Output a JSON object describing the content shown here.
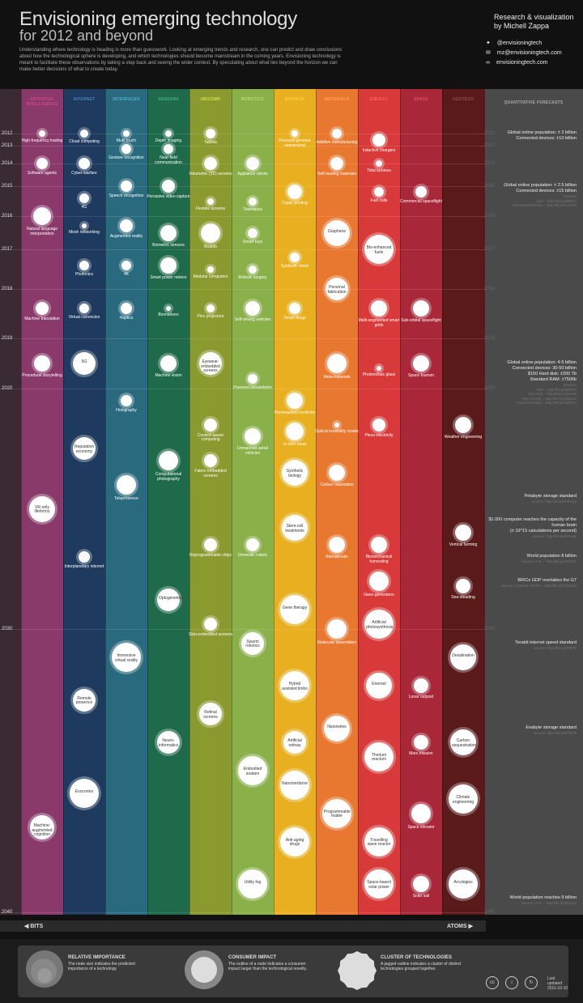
{
  "header": {
    "title_line1": "Envisioning emerging technology",
    "title_line2": "for 2012 and beyond",
    "intro": "Understanding where technology is heading is more than guesswork. Looking at emerging trends and research, one can predict and draw conclusions about how the technological sphere is developing, and which technologies should become mainstream in the coming years. Envisioning technology is meant to facilitate these observations by taking a step back and seeing the wider context. By speculating about what lies beyond the horizon we can make better decisions of what to create today.",
    "credit_line1": "Research & visualization",
    "credit_line2": "by Michell Zappa",
    "twitter": "@envisioningtech",
    "email": "mz@envisioningtech.com",
    "website": "envisioningtech.com"
  },
  "colors": {
    "ai": "#8a3a6a",
    "internet": "#1e3a5e",
    "interfaces": "#2a6a7e",
    "sensors": "#1e6a4a",
    "ubicomp": "#8a9a2e",
    "robotics": "#8ab04a",
    "biotech": "#e8b020",
    "materials": "#e87830",
    "energy": "#d83a3a",
    "space": "#a8283a",
    "geotech": "#5a1a1a",
    "forecast": "#4a4a4a"
  },
  "categories": [
    {
      "id": "ai",
      "name": "ARTIFICIAL INTELLIGENCE",
      "head_color": "#d04890"
    },
    {
      "id": "internet",
      "name": "INTERNET",
      "head_color": "#4a80c0"
    },
    {
      "id": "interfaces",
      "name": "INTERFACES",
      "head_color": "#50b0c8"
    },
    {
      "id": "sensors",
      "name": "SENSORS",
      "head_color": "#40b080"
    },
    {
      "id": "ubicomp",
      "name": "UBICOMP",
      "head_color": "#d0e050"
    },
    {
      "id": "robotics",
      "name": "ROBOTICS",
      "head_color": "#b0e070"
    },
    {
      "id": "biotech",
      "name": "BIOTECH",
      "head_color": "#ffd040"
    },
    {
      "id": "materials",
      "name": "MATERIALS",
      "head_color": "#ffa050"
    },
    {
      "id": "energy",
      "name": "ENERGY",
      "head_color": "#ff6060"
    },
    {
      "id": "space",
      "name": "SPACE",
      "head_color": "#e05060"
    },
    {
      "id": "geotech",
      "name": "GEOTECH",
      "head_color": "#905050"
    }
  ],
  "forecast_header": "QUANTITATIVE FORECASTS",
  "years": [
    "2012",
    "2013",
    "2014",
    "2015",
    "2016",
    "2017",
    "2018",
    "2019",
    "2020",
    "2030",
    "2040"
  ],
  "nodes": {
    "ai": [
      {
        "label": "High-frequency trading",
        "year": 2012.0,
        "size": 4
      },
      {
        "label": "Software agents",
        "year": 2014.0,
        "size": 7
      },
      {
        "label": "Natural language interpretation",
        "year": 2016.0,
        "size": 11
      },
      {
        "label": "Machine translation",
        "year": 2018.4,
        "size": 8
      },
      {
        "label": "Procedural storytelling",
        "year": 2019.5,
        "size": 10
      },
      {
        "label": "VR-only lifeforms",
        "year": 2025.0,
        "size": 16
      },
      {
        "label": "Machine-augmented cognition",
        "year": 2037.0,
        "size": 15
      }
    ],
    "internet": [
      {
        "label": "Cloud computing",
        "year": 2012.0,
        "size": 5
      },
      {
        "label": "Cyber-warfare",
        "year": 2014.0,
        "size": 7
      },
      {
        "label": "4G",
        "year": 2015.4,
        "size": 6
      },
      {
        "label": "Mesh networking",
        "year": 2016.3,
        "size": 3
      },
      {
        "label": "Photonics",
        "year": 2017.4,
        "size": 6
      },
      {
        "label": "Virtual currencies",
        "year": 2018.4,
        "size": 6
      },
      {
        "label": "5G",
        "year": 2019.5,
        "size": 14
      },
      {
        "label": "Reputation economy",
        "year": 2022.5,
        "size": 14
      },
      {
        "label": "Interplanetary internet",
        "year": 2027.0,
        "size": 7
      },
      {
        "label": "Remote presence",
        "year": 2032.5,
        "size": 14
      },
      {
        "label": "Exocortex",
        "year": 2035.8,
        "size": 18
      }
    ],
    "interfaces": [
      {
        "label": "Multi touch",
        "year": 2012.0,
        "size": 4
      },
      {
        "label": "Gesture recognition",
        "year": 2013.2,
        "size": 6
      },
      {
        "label": "Speech recognition",
        "year": 2015.0,
        "size": 7
      },
      {
        "label": "Augmented reality",
        "year": 2016.3,
        "size": 8
      },
      {
        "label": "4K",
        "year": 2017.4,
        "size": 6
      },
      {
        "label": "Haptics",
        "year": 2018.4,
        "size": 7
      },
      {
        "label": "Holography",
        "year": 2020.5,
        "size": 7
      },
      {
        "label": "Telepresence",
        "year": 2024.0,
        "size": 12
      },
      {
        "label": "Immersive virtual reality",
        "year": 2031.0,
        "size": 18
      }
    ],
    "sensors": [
      {
        "label": "Depth imaging",
        "year": 2012.0,
        "size": 4
      },
      {
        "label": "Near-field communication",
        "year": 2013.2,
        "size": 6
      },
      {
        "label": "Pervasive video capture",
        "year": 2015.0,
        "size": 8
      },
      {
        "label": "Biometric sensors",
        "year": 2016.5,
        "size": 10
      },
      {
        "label": "Smart power meters",
        "year": 2017.4,
        "size": 10
      },
      {
        "label": "Biomarkers",
        "year": 2018.4,
        "size": 3
      },
      {
        "label": "Machine vision",
        "year": 2019.5,
        "size": 10
      },
      {
        "label": "Computational photography",
        "year": 2023.0,
        "size": 12
      },
      {
        "label": "Optogenetics",
        "year": 2028.8,
        "size": 14
      },
      {
        "label": "Neuro-informatics",
        "year": 2034.0,
        "size": 14
      }
    ],
    "ubicomp": [
      {
        "label": "Tablets",
        "year": 2012.0,
        "size": 6
      },
      {
        "label": "Volumetric (3D) screens",
        "year": 2014.0,
        "size": 8
      },
      {
        "label": "Flexible screens",
        "year": 2015.5,
        "size": 4
      },
      {
        "label": "Boards",
        "year": 2016.5,
        "size": 12
      },
      {
        "label": "Modular computers",
        "year": 2017.5,
        "size": 4
      },
      {
        "label": "Pico projectors",
        "year": 2018.4,
        "size": 5
      },
      {
        "label": "Eyewear-embedded screens",
        "year": 2019.5,
        "size": 14
      },
      {
        "label": "Context-aware computing",
        "year": 2021.5,
        "size": 8
      },
      {
        "label": "Fabric-embedded screens",
        "year": 2023.0,
        "size": 8
      },
      {
        "label": "Reprogrammable chips",
        "year": 2026.5,
        "size": 8
      },
      {
        "label": "Skin-embedded screens",
        "year": 2029.8,
        "size": 8
      },
      {
        "label": "Retinal screens",
        "year": 2033.0,
        "size": 14
      }
    ],
    "robotics": [
      {
        "label": "Appliance robots",
        "year": 2014.0,
        "size": 8
      },
      {
        "label": "Telematics",
        "year": 2015.5,
        "size": 5
      },
      {
        "label": "Smart toys",
        "year": 2016.5,
        "size": 6
      },
      {
        "label": "Robotic surgery",
        "year": 2017.5,
        "size": 5
      },
      {
        "label": "Self-driving vehicles",
        "year": 2018.4,
        "size": 9
      },
      {
        "label": "Powered exoskeleton",
        "year": 2019.8,
        "size": 6
      },
      {
        "label": "Unmanned aerial vehicles",
        "year": 2022.0,
        "size": 10
      },
      {
        "label": "Domestic robots",
        "year": 2026.5,
        "size": 8
      },
      {
        "label": "Swarm robotics",
        "year": 2030.5,
        "size": 14
      },
      {
        "label": "Embodied avatars",
        "year": 2035.0,
        "size": 18
      },
      {
        "label": "Utility fog",
        "year": 2039.0,
        "size": 18
      }
    ],
    "biotech": [
      {
        "label": "Personal genome sequencing",
        "year": 2012.0,
        "size": 4
      },
      {
        "label": "Organ printing",
        "year": 2015.2,
        "size": 9
      },
      {
        "label": "Synthetic blood",
        "year": 2017.2,
        "size": 6
      },
      {
        "label": "Smart drugs",
        "year": 2018.4,
        "size": 7
      },
      {
        "label": "Personalized medicine",
        "year": 2020.5,
        "size": 10
      },
      {
        "label": "In-vitro meat",
        "year": 2021.8,
        "size": 11
      },
      {
        "label": "Synthetic biology",
        "year": 2023.5,
        "size": 16
      },
      {
        "label": "Stem-cell treatments",
        "year": 2025.8,
        "size": 16
      },
      {
        "label": "Gene therapy",
        "year": 2029.2,
        "size": 18
      },
      {
        "label": "Hybrid assisted limbs",
        "year": 2032.0,
        "size": 18
      },
      {
        "label": "Artificial retinas",
        "year": 2034.0,
        "size": 14
      },
      {
        "label": "Nanomedicine",
        "year": 2035.5,
        "size": 18
      },
      {
        "label": "Anti-aging drugs",
        "year": 2037.5,
        "size": 18
      }
    ],
    "materials": [
      {
        "label": "Additive manufacturing",
        "year": 2012.0,
        "size": 6
      },
      {
        "label": "Self-healing materials",
        "year": 2014.0,
        "size": 8
      },
      {
        "label": "Graphene",
        "year": 2016.5,
        "size": 16
      },
      {
        "label": "Personal fabrication",
        "year": 2018.0,
        "size": 14
      },
      {
        "label": "Meta-materials",
        "year": 2019.5,
        "size": 12
      },
      {
        "label": "Optical invisibility cloaks",
        "year": 2021.5,
        "size": 3
      },
      {
        "label": "Carbon nanotubes",
        "year": 2023.5,
        "size": 10
      },
      {
        "label": "Biomaterials",
        "year": 2026.5,
        "size": 10
      },
      {
        "label": "Molecular assemblers",
        "year": 2030.0,
        "size": 12
      },
      {
        "label": "Nanowires",
        "year": 2033.5,
        "size": 16
      },
      {
        "label": "Programmable matter",
        "year": 2036.5,
        "size": 18
      }
    ],
    "energy": [
      {
        "label": "Inductive chargers",
        "year": 2012.5,
        "size": 8
      },
      {
        "label": "Tidal turbines",
        "year": 2014.0,
        "size": 4
      },
      {
        "label": "Fuel cells",
        "year": 2015.2,
        "size": 6
      },
      {
        "label": "Bio-enhanced fuels",
        "year": 2017.0,
        "size": 18
      },
      {
        "label": "Multi-segmented smart grids",
        "year": 2018.4,
        "size": 10
      },
      {
        "label": "Photovoltaic glass",
        "year": 2019.6,
        "size": 3
      },
      {
        "label": "Piezo-electricity",
        "year": 2021.5,
        "size": 8
      },
      {
        "label": "Biomechanical harvesting",
        "year": 2026.5,
        "size": 10
      },
      {
        "label": "Nano-generators",
        "year": 2028.0,
        "size": 12
      },
      {
        "label": "Artificial photosynthesis",
        "year": 2029.8,
        "size": 18
      },
      {
        "label": "Enernet",
        "year": 2032.0,
        "size": 16
      },
      {
        "label": "Thorium reactors",
        "year": 2034.5,
        "size": 18
      },
      {
        "label": "Travelling wave reactor",
        "year": 2037.5,
        "size": 18
      },
      {
        "label": "Space-based solar power",
        "year": 2039.0,
        "size": 18
      }
    ],
    "space": [
      {
        "label": "Commercial spaceflight",
        "year": 2015.2,
        "size": 7
      },
      {
        "label": "Sub-orbital spaceflight",
        "year": 2018.4,
        "size": 10
      },
      {
        "label": "Space tourism",
        "year": 2019.5,
        "size": 10
      },
      {
        "label": "Lunar outpost",
        "year": 2032.0,
        "size": 9
      },
      {
        "label": "Mars mission",
        "year": 2034.0,
        "size": 9
      },
      {
        "label": "Space elevator",
        "year": 2036.5,
        "size": 12
      },
      {
        "label": "Solar sail",
        "year": 2039.0,
        "size": 10
      }
    ],
    "geotech": [
      {
        "label": "Weather engineering",
        "year": 2021.5,
        "size": 10
      },
      {
        "label": "Vertical farming",
        "year": 2026.0,
        "size": 10
      },
      {
        "label": "Sea-steading",
        "year": 2028.2,
        "size": 9
      },
      {
        "label": "Desalination",
        "year": 2031.0,
        "size": 16
      },
      {
        "label": "Carbon sequestration",
        "year": 2034.0,
        "size": 16
      },
      {
        "label": "Climate engineering",
        "year": 2036.0,
        "size": 18
      },
      {
        "label": "Arcologies",
        "year": 2039.0,
        "size": 18
      }
    ]
  },
  "forecasts": [
    {
      "year": 2012.0,
      "text": "Global online population: ± 2 billion\nConnected devices: ±10 billion",
      "source": ""
    },
    {
      "year": 2015.0,
      "text": "Global online population: ± 2.5 billion\nConnected devices: ±15 billion",
      "source": "Sources\nIntel – http://bit.ly/pfBhF4\nInternetWorldStats – http://bit.ly/AIJdOS"
    },
    {
      "year": 2019.5,
      "text": "Global online population: 4-5 billion\nConnected devices: 30-50 billion\n$150 Hard disk: ±200 Tb\nStandard RAM: ±7506b",
      "source": "Sources\nIntel – http://bit.ly/pfBhF4\nEricsson – http://bit.ly/xkwVek\nRay Conroy – http://bit.ly/yvtbyGS\nFutureTimeline – http://bit.ly/zQRFeJ"
    },
    {
      "year": 2024.5,
      "text": "Petabyte storage standard",
      "source": "Source: http://bit.ly/Hh8YQc"
    },
    {
      "year": 2025.5,
      "text": "$1.000 computer reaches the capacity of the human brain\n(± 10^15 calculations per second)",
      "source": "Source: http://bit.ly/dPAo3k"
    },
    {
      "year": 2027.0,
      "text": "World population 8 billion",
      "source": "Source: U.N. – http://bit.ly/7kyGkS"
    },
    {
      "year": 2028.0,
      "text": "BRICs GDP overtakes the G7",
      "source": "Source: Goldman Sachs – http://bit.ly/oCMNdg"
    },
    {
      "year": 2030.5,
      "text": "Terabit internet speed standard",
      "source": "Source: http://bit.ly/kPfKPk"
    },
    {
      "year": 2033.5,
      "text": "Exabyte storage standard",
      "source": "Source: http://bit.ly/kPfKPk"
    },
    {
      "year": 2039.5,
      "text": "World population reaches 9 billion",
      "source": "Source: U.N. – http://bit.ly/7kyGkS"
    }
  ],
  "axis": {
    "bits": "BITS",
    "atoms": "ATOMS"
  },
  "legend": {
    "importance_title": "RELATIVE IMPORTANCE",
    "importance_text": "The node size indicates the predicted importance of a technology",
    "impact_title": "CONSUMER IMPACT",
    "impact_text": "The outline of a node indicates a consumer impact larger than the technological novelty.",
    "cluster_title": "CLUSTER OF TECHNOLOGIES",
    "cluster_text": "A jagged outline indicates a cluster of distinct technologies grouped together.",
    "updated_label": "Last updated",
    "updated_date": "2011-10-10"
  }
}
